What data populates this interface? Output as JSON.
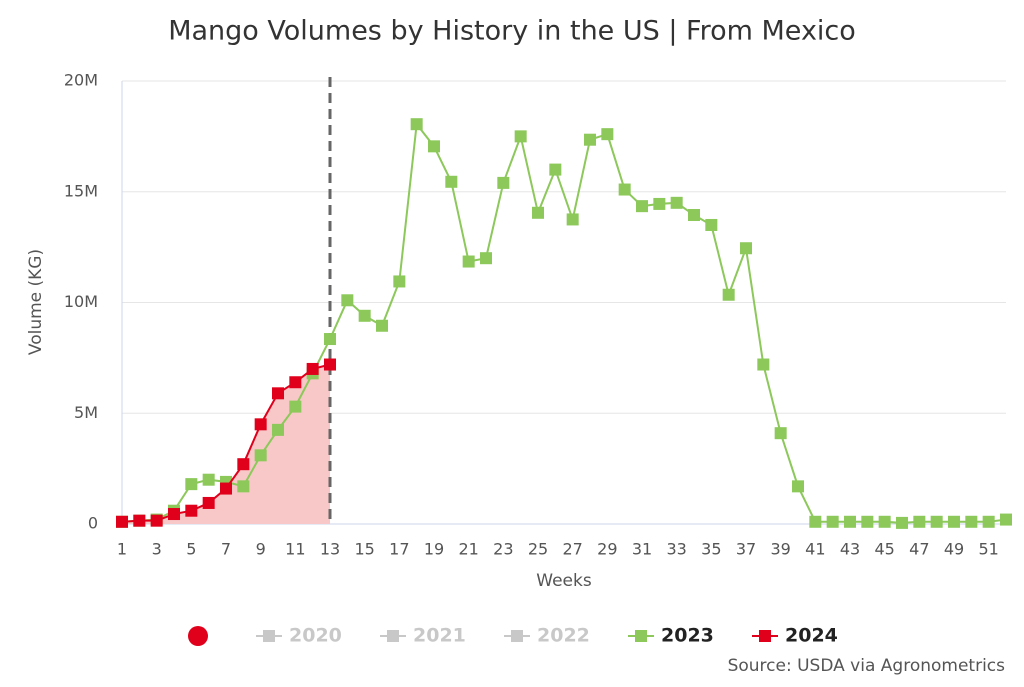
{
  "chart_data": {
    "type": "line",
    "title": "Mango Volumes by History in the US | From Mexico",
    "x_label": "Weeks",
    "y_label": "Volume (KG)",
    "source": "Source: USDA via Agronometrics",
    "x": [
      1,
      2,
      3,
      4,
      5,
      6,
      7,
      8,
      9,
      10,
      11,
      12,
      13,
      14,
      15,
      16,
      17,
      18,
      19,
      20,
      21,
      22,
      23,
      24,
      25,
      26,
      27,
      28,
      29,
      30,
      31,
      32,
      33,
      34,
      35,
      36,
      37,
      38,
      39,
      40,
      41,
      42,
      43,
      44,
      45,
      46,
      47,
      48,
      49,
      50,
      51,
      52
    ],
    "xlim": [
      1,
      52
    ],
    "xticks": [
      1,
      3,
      5,
      7,
      9,
      11,
      13,
      15,
      17,
      19,
      21,
      23,
      25,
      27,
      29,
      31,
      33,
      35,
      37,
      39,
      41,
      43,
      45,
      47,
      49,
      51
    ],
    "ylim": [
      0,
      20000000
    ],
    "yticks": [
      0,
      {
        "value": 5000000,
        "label": "5M"
      },
      {
        "value": 10000000,
        "label": "10M"
      },
      {
        "value": 15000000,
        "label": "15M"
      },
      {
        "value": 20000000,
        "label": "20M"
      }
    ],
    "grid": true,
    "current_week": 13,
    "inactive_series": [
      {
        "name": "2020",
        "color": "#c8c8c8"
      },
      {
        "name": "2021",
        "color": "#c8c8c8"
      },
      {
        "name": "2022",
        "color": "#c8c8c8"
      }
    ],
    "series": [
      {
        "name": "2023",
        "color": "#8cc85a",
        "values": [
          100000,
          150000,
          200000,
          600000,
          1800000,
          2000000,
          1900000,
          1700000,
          3100000,
          4250000,
          5300000,
          6800000,
          8350000,
          10100000,
          9400000,
          8950000,
          10950000,
          18050000,
          17050000,
          15450000,
          11850000,
          12000000,
          15400000,
          17500000,
          14050000,
          16000000,
          13750000,
          17350000,
          17600000,
          15100000,
          14350000,
          14450000,
          14500000,
          13950000,
          13500000,
          10350000,
          12450000,
          7200000,
          4100000,
          1700000,
          100000,
          100000,
          100000,
          100000,
          100000,
          50000,
          100000,
          100000,
          100000,
          100000,
          100000,
          200000
        ]
      },
      {
        "name": "2024",
        "color": "#e0001b",
        "area_color": "#f8c8c8",
        "values": [
          100000,
          150000,
          150000,
          450000,
          600000,
          950000,
          1600000,
          2700000,
          4500000,
          5900000,
          6400000,
          7000000,
          7200000,
          null,
          null,
          null,
          null,
          null,
          null,
          null,
          null,
          null,
          null,
          null,
          null,
          null,
          null,
          null,
          null,
          null,
          null,
          null,
          null,
          null,
          null,
          null,
          null,
          null,
          null,
          null,
          null,
          null,
          null,
          null,
          null,
          null,
          null,
          null,
          null,
          null,
          null,
          null
        ]
      }
    ]
  }
}
